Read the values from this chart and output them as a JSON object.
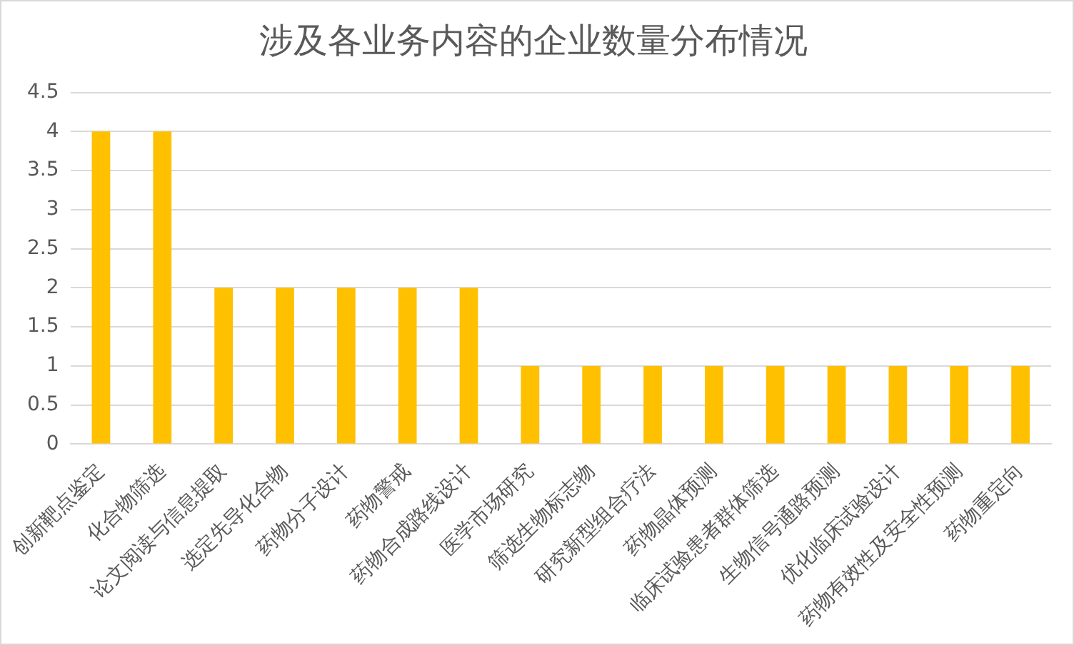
{
  "chart_data": {
    "type": "bar",
    "title": "涉及各业务内容的企业数量分布情况",
    "categories": [
      "创新靶点鉴定",
      "化合物筛选",
      "论文阅读与信息提取",
      "选定先导化合物",
      "药物分子设计",
      "药物警戒",
      "药物合成路线设计",
      "医学市场研究",
      "筛选生物标志物",
      "研究新型组合疗法",
      "药物晶体预测",
      "临床试验患者群体筛选",
      "生物信号通路预测",
      "优化临床试验设计",
      "药物有效性及安全性预测",
      "药物重定向"
    ],
    "values": [
      4,
      4,
      2,
      2,
      2,
      2,
      2,
      1,
      1,
      1,
      1,
      1,
      1,
      1,
      1,
      1
    ],
    "color": "#ffc000",
    "ylim": [
      0,
      4.5
    ],
    "yticks": [
      0,
      0.5,
      1,
      1.5,
      2,
      2.5,
      3,
      3.5,
      4,
      4.5
    ],
    "grid": "y"
  }
}
